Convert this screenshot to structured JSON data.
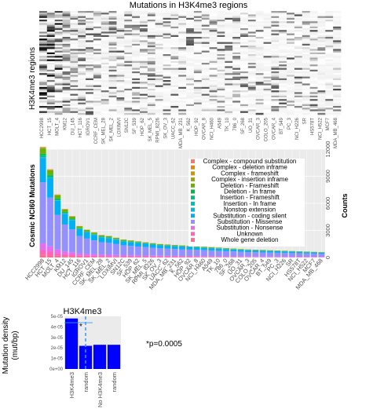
{
  "heatmap": {
    "title": "Mutations in H3K4me3 regions",
    "ylabel": "H3K4me3 regions",
    "type": "heatmap"
  },
  "chart_data": [
    {
      "type": "heatmap",
      "title": "Mutations in H3K4me3 regions",
      "ylabel": "H3K4me3 regions",
      "categories": [
        "HCC2998",
        "HCT_15",
        "MOLT_4",
        "KM12",
        "DU_145",
        "HCT_116",
        "IGROV1",
        "CCRF_CEM",
        "SK_MEL_28",
        "SK_MEL_2",
        "LOXIMVI",
        "SN12C",
        "SF_539",
        "HOP_62",
        "SK_MEL_5",
        "RPMI_8226",
        "SK_OV_3",
        "UACC_62",
        "MDA_MB_231",
        "K_562",
        "HOP_92",
        "OVCAR_8",
        "NCI_H460",
        "A549",
        "TK_10",
        "786_0",
        "SF_268",
        "UO_31",
        "OVCAR_3",
        "COLO_205",
        "OVCAR_4",
        "BT_549",
        "PC_3",
        "NCI_H226",
        "SR",
        "HS578T",
        "NCI_H522",
        "MCF7",
        "MDA_MB_468"
      ],
      "note_rows": "many"
    },
    {
      "type": "bar",
      "ylabel": "Cosmic NCI60 Mutations",
      "y2label": "Counts",
      "ylim": [
        0,
        12000
      ],
      "yticks": [
        0,
        3000,
        6000,
        9000,
        12000
      ],
      "grid": true,
      "legend_position": "top-right",
      "categories": [
        "HCC2998",
        "HCT_15",
        "MOLT_4",
        "KM12",
        "DU_145",
        "HCT_116",
        "IGROV1",
        "CCRF_CEM",
        "SK_MEL_28",
        "SK_MEL_2",
        "LOXIMVI",
        "SN12C",
        "SF_539",
        "HOP_62",
        "SK_MEL_5",
        "RPMI_8226",
        "SK_OV_3",
        "UACC_62",
        "MDA_MB_231",
        "K_562",
        "HOP_92",
        "OVCAR_8",
        "NCI_H460",
        "A549",
        "TK_10",
        "786_0",
        "SF_268",
        "UO_31",
        "OVCAR_3",
        "COLO_205",
        "OVCAR_4",
        "BT_549",
        "PC_3",
        "NCI_H226",
        "SR",
        "HS578T",
        "NCI_H522",
        "MCF7",
        "MDA_MB_468"
      ],
      "totals": [
        12300,
        9800,
        7000,
        5400,
        4600,
        3500,
        3100,
        2800,
        2500,
        2400,
        2200,
        2000,
        1900,
        1800,
        1700,
        1600,
        1500,
        1450,
        1400,
        1350,
        1300,
        1250,
        1200,
        1150,
        1100,
        1050,
        1000,
        950,
        900,
        870,
        840,
        810,
        780,
        750,
        720,
        690,
        660,
        630,
        600
      ],
      "series": [
        {
          "name": "Complex - compound substitution",
          "color": "#F8766D",
          "share": 0.003
        },
        {
          "name": "Complex - deletion inframe",
          "color": "#E58700",
          "share": 0.003
        },
        {
          "name": "Complex - frameshift",
          "color": "#C99800",
          "share": 0.003
        },
        {
          "name": "Complex - insertion inframe",
          "color": "#A3A500",
          "share": 0.003
        },
        {
          "name": "Deletion - Frameshift",
          "color": "#6BB100",
          "share": 0.05
        },
        {
          "name": "Deletion - In frame",
          "color": "#00BA38",
          "share": 0.01
        },
        {
          "name": "Insertion - Frameshift",
          "color": "#00BF7D",
          "share": 0.02
        },
        {
          "name": "Insertion - In frame",
          "color": "#00C0AF",
          "share": 0.005
        },
        {
          "name": "Nonstop extension",
          "color": "#00BCD8",
          "share": 0.003
        },
        {
          "name": "Substitution - coding silent",
          "color": "#00B0F6",
          "share": 0.22
        },
        {
          "name": "Substitution - Missense",
          "color": "#9590FF",
          "share": 0.55
        },
        {
          "name": "Substitution - Nonsense",
          "color": "#E76BF3",
          "share": 0.06
        },
        {
          "name": "Unknown",
          "color": "#FF62BC",
          "share": 0.04
        },
        {
          "name": "Whole gene deletion",
          "color": "#FF6C91",
          "share": 0.027
        }
      ],
      "legend_labels": [
        "Complex - compound substitution",
        "Complex - deletion inframe",
        "Complex - frameshift",
        "Complex - insertion inframe",
        "Deletion - Frameshift",
        "Deletion - In frame",
        "Insertion - Frameshift",
        "Insertion - In frame",
        "Nonstop extension",
        "Substitution - coding silent",
        "Substitution - Missense",
        "Substitution - Nonsense",
        "Unknown",
        "Whole gene deletion"
      ]
    },
    {
      "type": "bar",
      "title": "H3K4me3",
      "ylabel": "Mutation density\n(mut/bp)",
      "categories": [
        "H3K4me3",
        "random",
        "No H3K4me3",
        "random"
      ],
      "values": [
        4.8e-05,
        2.2e-05,
        2.3e-05,
        2.3e-05
      ],
      "ylim": [
        0,
        5e-05
      ],
      "yticks": [
        "0e+00",
        "1e-05",
        "2e-05",
        "3e-05",
        "4e-05",
        "5e-05"
      ],
      "significance": "*",
      "annotation": "*p=0.0005",
      "bar_color": "#0000FF",
      "dashed_line_color": "#3399FF"
    }
  ],
  "bar_legend_title": "",
  "texts": {
    "heat_title": "Mutations in H3K4me3 regions",
    "heat_ylabel": "H3K4me3 regions",
    "bar_ylabel": "Cosmic NCI60 Mutations",
    "bar_y2label": "Counts",
    "small_title": "H3K4me3",
    "small_ylabel1": "Mutation density",
    "small_ylabel2": "(mut/bp)",
    "small_star": "*",
    "pvalue": "*p=0.0005"
  }
}
